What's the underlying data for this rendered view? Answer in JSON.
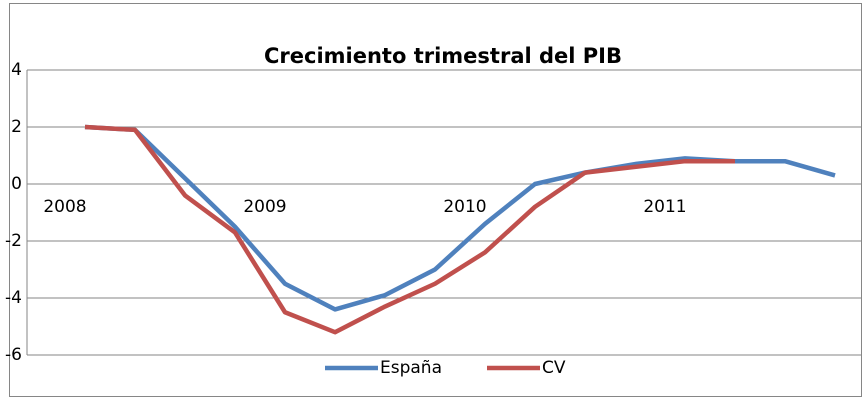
{
  "chart_data": {
    "type": "line",
    "title": "Crecimiento trimestral del PIB",
    "categories": [
      "2008",
      null,
      null,
      null,
      "2009",
      null,
      null,
      null,
      "2010",
      null,
      null,
      null,
      "2011",
      null,
      null,
      null
    ],
    "series": [
      {
        "name": "España",
        "color": "#4f81bd",
        "values": [
          2.0,
          1.9,
          0.2,
          -1.5,
          -3.5,
          -4.4,
          -3.9,
          -3.0,
          -1.4,
          0.0,
          0.4,
          0.7,
          0.9,
          0.8,
          0.8,
          0.3
        ]
      },
      {
        "name": "CV",
        "color": "#c0504d",
        "values": [
          2.0,
          1.9,
          -0.4,
          -1.7,
          -4.5,
          -5.2,
          -4.3,
          -3.5,
          -2.4,
          -0.8,
          0.4,
          0.6,
          0.8,
          0.8,
          null,
          null
        ]
      }
    ],
    "ylim": [
      -6,
      4
    ],
    "yticks": [
      -6,
      -4,
      -2,
      0,
      2,
      4
    ],
    "grid": true,
    "legend": "bottom"
  }
}
